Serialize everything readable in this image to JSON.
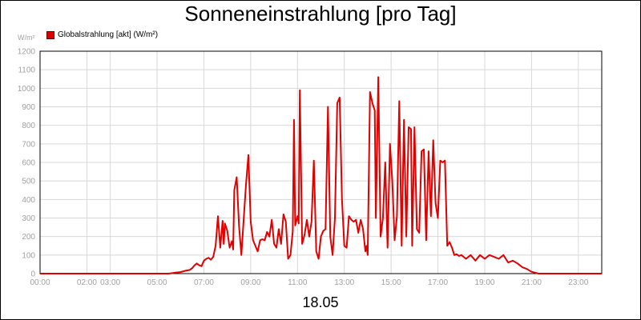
{
  "page": {
    "title": "Sonneneinstrahlung [pro Tag]",
    "date_label": "18.05"
  },
  "chart_data": {
    "type": "line",
    "title": "Sonneneinstrahlung [pro Tag]",
    "ylabel": "W/m²",
    "xlabel": "18.05",
    "ylim": [
      0,
      1200
    ],
    "xlim_hours": [
      0,
      24
    ],
    "grid": true,
    "legend_position": "top-left",
    "y_ticks": [
      0,
      100,
      200,
      300,
      400,
      500,
      600,
      700,
      800,
      900,
      1000,
      1100,
      1200
    ],
    "x_tick_labels": [
      {
        "label": "00:00",
        "hour": 0
      },
      {
        "label": "02:00",
        "hour": 2
      },
      {
        "label": "03:00",
        "hour": 3
      },
      {
        "label": "05:00",
        "hour": 5
      },
      {
        "label": "07:00",
        "hour": 7
      },
      {
        "label": "09:00",
        "hour": 9
      },
      {
        "label": "11:00",
        "hour": 11
      },
      {
        "label": "13:00",
        "hour": 13
      },
      {
        "label": "15:00",
        "hour": 15
      },
      {
        "label": "17:00",
        "hour": 17
      },
      {
        "label": "19:00",
        "hour": 19
      },
      {
        "label": "21:00",
        "hour": 21
      },
      {
        "label": "23:00",
        "hour": 23
      }
    ],
    "series": [
      {
        "name": "Globalstrahlung [akt] (W/m²)",
        "color": "#e00000",
        "points": [
          [
            0,
            0
          ],
          [
            5.5,
            0
          ],
          [
            5.8,
            5
          ],
          [
            6.0,
            8
          ],
          [
            6.2,
            15
          ],
          [
            6.4,
            20
          ],
          [
            6.5,
            30
          ],
          [
            6.6,
            45
          ],
          [
            6.7,
            55
          ],
          [
            6.8,
            45
          ],
          [
            6.9,
            40
          ],
          [
            7.0,
            70
          ],
          [
            7.1,
            80
          ],
          [
            7.2,
            85
          ],
          [
            7.3,
            75
          ],
          [
            7.4,
            90
          ],
          [
            7.5,
            150
          ],
          [
            7.6,
            310
          ],
          [
            7.7,
            140
          ],
          [
            7.8,
            285
          ],
          [
            7.85,
            160
          ],
          [
            7.9,
            270
          ],
          [
            8.0,
            230
          ],
          [
            8.1,
            140
          ],
          [
            8.2,
            175
          ],
          [
            8.25,
            130
          ],
          [
            8.3,
            450
          ],
          [
            8.4,
            520
          ],
          [
            8.5,
            260
          ],
          [
            8.6,
            100
          ],
          [
            8.7,
            290
          ],
          [
            8.8,
            480
          ],
          [
            8.9,
            640
          ],
          [
            9.0,
            280
          ],
          [
            9.1,
            180
          ],
          [
            9.2,
            150
          ],
          [
            9.3,
            120
          ],
          [
            9.4,
            180
          ],
          [
            9.5,
            185
          ],
          [
            9.6,
            180
          ],
          [
            9.7,
            225
          ],
          [
            9.8,
            200
          ],
          [
            9.9,
            290
          ],
          [
            10.0,
            160
          ],
          [
            10.1,
            140
          ],
          [
            10.2,
            240
          ],
          [
            10.3,
            160
          ],
          [
            10.4,
            320
          ],
          [
            10.5,
            280
          ],
          [
            10.6,
            80
          ],
          [
            10.7,
            100
          ],
          [
            10.8,
            230
          ],
          [
            10.85,
            830
          ],
          [
            10.9,
            260
          ],
          [
            11.0,
            310
          ],
          [
            11.05,
            270
          ],
          [
            11.1,
            990
          ],
          [
            11.2,
            160
          ],
          [
            11.3,
            210
          ],
          [
            11.4,
            290
          ],
          [
            11.5,
            200
          ],
          [
            11.6,
            280
          ],
          [
            11.7,
            610
          ],
          [
            11.8,
            120
          ],
          [
            11.9,
            80
          ],
          [
            12.0,
            200
          ],
          [
            12.1,
            230
          ],
          [
            12.2,
            240
          ],
          [
            12.3,
            900
          ],
          [
            12.4,
            200
          ],
          [
            12.5,
            100
          ],
          [
            12.6,
            300
          ],
          [
            12.7,
            920
          ],
          [
            12.8,
            950
          ],
          [
            12.9,
            400
          ],
          [
            13.0,
            150
          ],
          [
            13.1,
            140
          ],
          [
            13.2,
            310
          ],
          [
            13.3,
            290
          ],
          [
            13.4,
            280
          ],
          [
            13.5,
            290
          ],
          [
            13.6,
            220
          ],
          [
            13.7,
            290
          ],
          [
            13.8,
            240
          ],
          [
            13.9,
            120
          ],
          [
            13.95,
            150
          ],
          [
            14.0,
            100
          ],
          [
            14.1,
            980
          ],
          [
            14.2,
            920
          ],
          [
            14.3,
            880
          ],
          [
            14.35,
            300
          ],
          [
            14.45,
            1060
          ],
          [
            14.55,
            200
          ],
          [
            14.65,
            300
          ],
          [
            14.75,
            600
          ],
          [
            14.85,
            140
          ],
          [
            14.95,
            700
          ],
          [
            15.05,
            500
          ],
          [
            15.15,
            180
          ],
          [
            15.25,
            310
          ],
          [
            15.35,
            930
          ],
          [
            15.45,
            150
          ],
          [
            15.55,
            830
          ],
          [
            15.65,
            200
          ],
          [
            15.75,
            790
          ],
          [
            15.85,
            780
          ],
          [
            15.9,
            150
          ],
          [
            16.0,
            790
          ],
          [
            16.1,
            240
          ],
          [
            16.2,
            220
          ],
          [
            16.3,
            660
          ],
          [
            16.4,
            670
          ],
          [
            16.5,
            180
          ],
          [
            16.6,
            660
          ],
          [
            16.7,
            310
          ],
          [
            16.8,
            720
          ],
          [
            16.9,
            380
          ],
          [
            17.0,
            300
          ],
          [
            17.1,
            610
          ],
          [
            17.2,
            600
          ],
          [
            17.3,
            610
          ],
          [
            17.4,
            150
          ],
          [
            17.5,
            170
          ],
          [
            17.6,
            140
          ],
          [
            17.7,
            100
          ],
          [
            17.8,
            105
          ],
          [
            17.9,
            95
          ],
          [
            18.0,
            100
          ],
          [
            18.2,
            80
          ],
          [
            18.4,
            100
          ],
          [
            18.6,
            70
          ],
          [
            18.8,
            100
          ],
          [
            19.0,
            80
          ],
          [
            19.2,
            100
          ],
          [
            19.4,
            90
          ],
          [
            19.6,
            80
          ],
          [
            19.8,
            100
          ],
          [
            20.0,
            60
          ],
          [
            20.2,
            70
          ],
          [
            20.4,
            55
          ],
          [
            20.6,
            35
          ],
          [
            20.8,
            25
          ],
          [
            21.0,
            10
          ],
          [
            21.3,
            0
          ],
          [
            24,
            0
          ]
        ]
      }
    ]
  }
}
